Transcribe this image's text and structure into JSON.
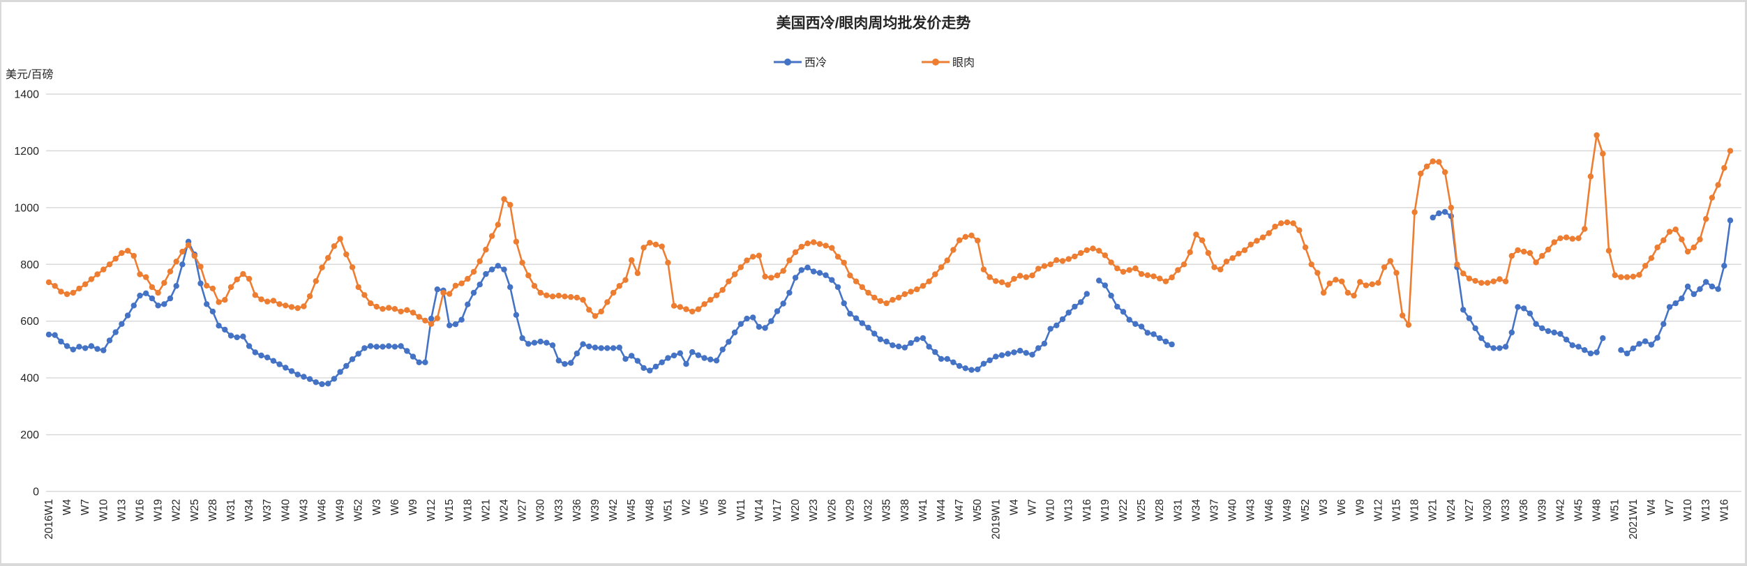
{
  "title": "美国西冷/眼肉周均批发价走势",
  "y_axis": {
    "unit_label": "美元/百磅",
    "min": 0,
    "max": 1400,
    "step": 200
  },
  "legend": {
    "items": [
      {
        "label": "西冷",
        "color": "#4472C4"
      },
      {
        "label": "眼肉",
        "color": "#ED7D31"
      }
    ]
  },
  "chart_data": {
    "type": "line",
    "title": "美国西冷/眼肉周均批发价走势",
    "ylabel": "美元/百磅",
    "ylim": [
      0,
      1400
    ],
    "y_ticks": [
      0,
      200,
      400,
      600,
      800,
      1000,
      1200,
      1400
    ],
    "grid": "horizontal",
    "legend_position": "top-center",
    "frequency": "weekly",
    "x_label_every": 3,
    "x_tick_labels": [
      "2016W1",
      "W4",
      "W7",
      "W10",
      "W13",
      "W16",
      "W19",
      "W22",
      "W25",
      "W28",
      "W31",
      "W34",
      "W37",
      "W40",
      "W43",
      "W46",
      "W49",
      "W52",
      "W3",
      "W6",
      "W9",
      "W12",
      "W15",
      "W18",
      "W21",
      "W24",
      "W27",
      "W30",
      "W33",
      "W36",
      "W39",
      "W42",
      "W45",
      "W48",
      "W51",
      "W2",
      "W5",
      "W8",
      "W11",
      "W14",
      "W17",
      "W20",
      "W23",
      "W26",
      "W29",
      "W32",
      "W35",
      "W38",
      "W41",
      "W44",
      "W47",
      "W50",
      "2019W1",
      "W4",
      "W7",
      "W10",
      "W13",
      "W16",
      "W19",
      "W22",
      "W25",
      "W28",
      "W31",
      "W34",
      "W37",
      "W40",
      "W43",
      "W46",
      "W49",
      "W52",
      "W3",
      "W6",
      "W9",
      "W12",
      "W15",
      "W18",
      "W21",
      "W24",
      "W27",
      "W30",
      "W33",
      "W36",
      "W39",
      "W42",
      "W45",
      "W48",
      "W51",
      "2021W1",
      "W4",
      "W7",
      "W10",
      "W13",
      "W16"
    ],
    "series": [
      {
        "name": "西冷",
        "color": "#4472C4",
        "values": [
          553,
          551,
          528,
          512,
          500,
          510,
          505,
          512,
          502,
          497,
          532,
          561,
          590,
          620,
          655,
          690,
          698,
          680,
          655,
          660,
          680,
          724,
          800,
          880,
          835,
          733,
          660,
          634,
          584,
          570,
          549,
          543,
          546,
          512,
          490,
          479,
          472,
          460,
          448,
          436,
          424,
          412,
          404,
          396,
          385,
          378,
          380,
          397,
          421,
          442,
          466,
          485,
          505,
          512,
          510,
          510,
          512,
          510,
          512,
          495,
          475,
          455,
          455,
          609,
          712,
          708,
          585,
          589,
          605,
          659,
          700,
          729,
          766,
          782,
          795,
          782,
          720,
          622,
          540,
          520,
          524,
          528,
          524,
          515,
          461,
          449,
          453,
          486,
          519,
          511,
          507,
          505,
          505,
          505,
          507,
          467,
          478,
          460,
          435,
          426,
          440,
          455,
          470,
          479,
          487,
          449,
          491,
          480,
          470,
          465,
          461,
          500,
          527,
          560,
          590,
          609,
          613,
          580,
          576,
          600,
          635,
          662,
          700,
          753,
          780,
          789,
          775,
          770,
          762,
          745,
          720,
          663,
          626,
          610,
          593,
          577,
          556,
          536,
          528,
          515,
          511,
          507,
          523,
          536,
          540,
          510,
          491,
          467,
          467,
          455,
          442,
          434,
          428,
          430,
          450,
          462,
          475,
          480,
          485,
          490,
          496,
          488,
          482,
          505,
          521,
          573,
          585,
          607,
          630,
          651,
          667,
          696,
          null,
          743,
          726,
          690,
          651,
          633,
          605,
          590,
          581,
          559,
          554,
          540,
          528,
          518,
          null,
          null,
          null,
          null,
          null,
          null,
          null,
          null,
          null,
          null,
          null,
          null,
          null,
          null,
          null,
          null,
          null,
          null,
          null,
          null,
          null,
          null,
          null,
          null,
          null,
          null,
          null,
          null,
          null,
          null,
          null,
          null,
          null,
          null,
          null,
          null,
          null,
          null,
          null,
          null,
          null,
          null,
          965,
          980,
          985,
          970,
          790,
          640,
          610,
          575,
          540,
          515,
          505,
          505,
          510,
          560,
          650,
          645,
          627,
          590,
          575,
          565,
          560,
          555,
          535,
          515,
          510,
          498,
          486,
          490,
          540,
          null,
          null,
          498,
          486,
          504,
          520,
          529,
          517,
          541,
          590,
          650,
          663,
          680,
          722,
          695,
          713,
          738,
          722,
          713,
          795,
          955
        ]
      },
      {
        "name": "眼肉",
        "color": "#ED7D31",
        "values": [
          737,
          724,
          704,
          695,
          700,
          715,
          730,
          748,
          765,
          782,
          800,
          820,
          840,
          848,
          830,
          765,
          755,
          720,
          700,
          735,
          775,
          810,
          845,
          868,
          830,
          792,
          725,
          715,
          667,
          675,
          720,
          747,
          766,
          749,
          692,
          677,
          669,
          672,
          660,
          655,
          650,
          646,
          652,
          688,
          741,
          789,
          823,
          864,
          890,
          835,
          790,
          720,
          692,
          663,
          651,
          643,
          647,
          643,
          634,
          639,
          630,
          615,
          602,
          590,
          610,
          700,
          696,
          725,
          733,
          749,
          774,
          811,
          852,
          900,
          940,
          1030,
          1010,
          880,
          806,
          761,
          724,
          700,
          691,
          687,
          690,
          687,
          685,
          683,
          675,
          640,
          618,
          634,
          667,
          700,
          724,
          745,
          815,
          769,
          859,
          876,
          870,
          863,
          806,
          654,
          650,
          642,
          634,
          642,
          660,
          675,
          691,
          710,
          740,
          765,
          790,
          814,
          827,
          831,
          757,
          753,
          761,
          777,
          814,
          843,
          862,
          874,
          878,
          872,
          866,
          858,
          827,
          806,
          761,
          740,
          720,
          700,
          683,
          671,
          663,
          675,
          683,
          695,
          704,
          712,
          724,
          740,
          765,
          790,
          814,
          851,
          885,
          897,
          902,
          884,
          782,
          755,
          741,
          737,
          728,
          749,
          760,
          755,
          761,
          785,
          794,
          800,
          815,
          812,
          819,
          828,
          840,
          850,
          856,
          848,
          832,
          807,
          786,
          774,
          780,
          786,
          766,
          762,
          758,
          750,
          740,
          754,
          780,
          800,
          843,
          905,
          885,
          840,
          790,
          782,
          810,
          822,
          838,
          850,
          870,
          883,
          895,
          910,
          933,
          945,
          948,
          945,
          920,
          860,
          800,
          770,
          700,
          733,
          746,
          740,
          700,
          690,
          738,
          726,
          730,
          735,
          790,
          812,
          770,
          620,
          587,
          984,
          1120,
          1145,
          1163,
          1161,
          1125,
          1000,
          800,
          768,
          750,
          742,
          735,
          735,
          740,
          748,
          740,
          830,
          850,
          845,
          840,
          807,
          830,
          852,
          878,
          892,
          895,
          890,
          892,
          925,
          1110,
          1255,
          1190,
          848,
          762,
          755,
          755,
          757,
          763,
          795,
          822,
          860,
          885,
          915,
          923,
          888,
          845,
          860,
          888,
          960,
          1035,
          1080,
          1140,
          1200
        ]
      }
    ]
  }
}
